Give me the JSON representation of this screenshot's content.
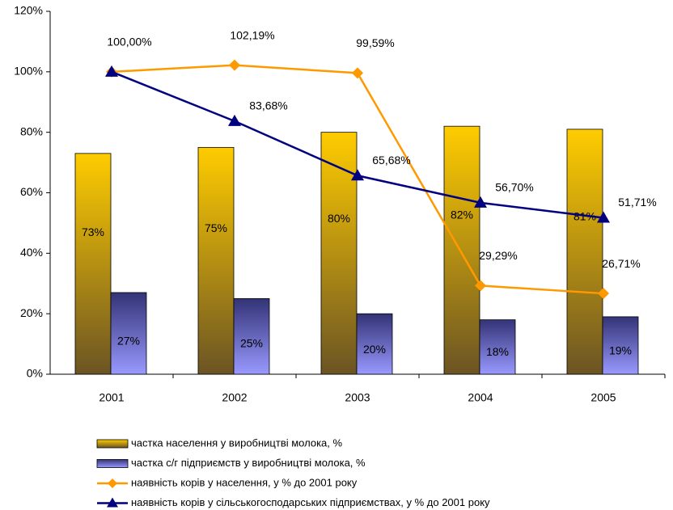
{
  "chart_data": {
    "type": "bar-line",
    "categories": [
      "2001",
      "2002",
      "2003",
      "2004",
      "2005"
    ],
    "ylim": [
      0,
      120
    ],
    "yticks": [
      {
        "value": 0,
        "label": "0%"
      },
      {
        "value": 20,
        "label": "20%"
      },
      {
        "value": 40,
        "label": "40%"
      },
      {
        "value": 60,
        "label": "60%"
      },
      {
        "value": 80,
        "label": "80%"
      },
      {
        "value": 100,
        "label": "100%"
      },
      {
        "value": 120,
        "label": "120%"
      }
    ],
    "series": [
      {
        "name": "частка населення у виробництві молока, %",
        "type": "bar",
        "color": "#ffcc00",
        "values": [
          73,
          75,
          80,
          82,
          81
        ],
        "value_labels": [
          "73%",
          "75%",
          "80%",
          "82%",
          "81%"
        ]
      },
      {
        "name": "частка с/г підприємств у виробництві молока, %",
        "type": "bar",
        "color": "#9999ff",
        "values": [
          27,
          25,
          20,
          18,
          19
        ],
        "value_labels": [
          "27%",
          "25%",
          "20%",
          "18%",
          "19%"
        ]
      },
      {
        "name": "наявність корів у населення, у % до 2001 року",
        "type": "line",
        "color": "#ff9900",
        "values": [
          100,
          102.19,
          99.59,
          29.29,
          26.71
        ],
        "value_labels": [
          "100,00%",
          "102,19%",
          "99,59%",
          "29,29%",
          "26,71%"
        ]
      },
      {
        "name": "наявність корів у сільськогосподарських підприємствах, у % до 2001 року",
        "type": "line",
        "color": "#000080",
        "values": [
          100,
          83.68,
          65.68,
          56.7,
          51.71
        ],
        "value_labels": [
          "100,00%",
          "83,68%",
          "65,68%",
          "56,70%",
          "51,71%"
        ]
      }
    ]
  }
}
